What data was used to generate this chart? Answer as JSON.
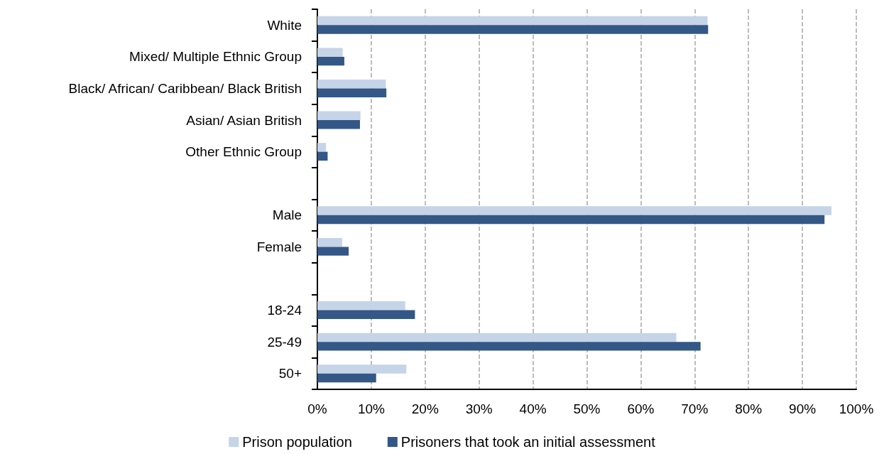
{
  "chart_data": {
    "type": "bar",
    "orientation": "horizontal",
    "categories": [
      "White",
      "Mixed/ Multiple Ethnic Group",
      "Black/ African/ Caribbean/ Black British",
      "Asian/ Asian British",
      "Other Ethnic Group",
      null,
      "Male",
      "Female",
      null,
      "18-24",
      "25-49",
      "50+"
    ],
    "series": [
      {
        "name": "Prison population",
        "color": "#c6d4e8",
        "values": [
          72.4,
          4.7,
          12.7,
          8.0,
          1.6,
          null,
          95.4,
          4.6,
          null,
          16.3,
          66.6,
          16.5
        ]
      },
      {
        "name": "Prisoners that took an initial assessment",
        "color": "#335786",
        "values": [
          72.5,
          5.0,
          12.8,
          7.9,
          1.9,
          null,
          94.1,
          5.8,
          null,
          18.1,
          71.1,
          10.9
        ]
      }
    ],
    "xlim": [
      0,
      100
    ],
    "xticks": [
      {
        "value": 0,
        "label": "0%"
      },
      {
        "value": 10,
        "label": "10%"
      },
      {
        "value": 20,
        "label": "20%"
      },
      {
        "value": 30,
        "label": "30%"
      },
      {
        "value": 40,
        "label": "40%"
      },
      {
        "value": 50,
        "label": "50%"
      },
      {
        "value": 60,
        "label": "60%"
      },
      {
        "value": 70,
        "label": "70%"
      },
      {
        "value": 80,
        "label": "80%"
      },
      {
        "value": 90,
        "label": "90%"
      },
      {
        "value": 100,
        "label": "100%"
      }
    ],
    "grid": "x",
    "legend": "bottom"
  }
}
